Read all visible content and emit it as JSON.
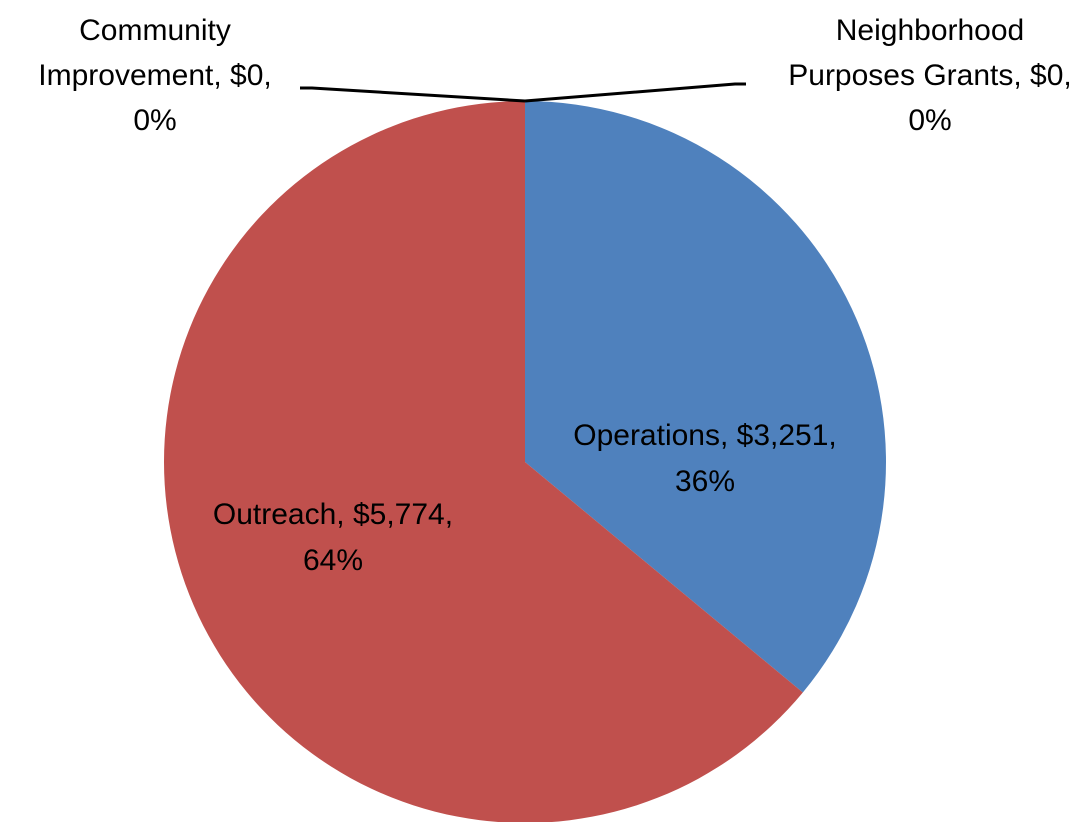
{
  "chart_data": {
    "type": "pie",
    "slices": [
      {
        "name": "Operations",
        "value": 3251,
        "value_label": "$3,251",
        "percent_label": "36%",
        "color": "#4F81BD"
      },
      {
        "name": "Neighborhood Purposes Grants",
        "value": 0,
        "value_label": "$0",
        "percent_label": "0%",
        "color": "#9BBB59"
      },
      {
        "name": "Community Improvement",
        "value": 0,
        "value_label": "$0",
        "percent_label": "0%",
        "color": "#8064A2"
      },
      {
        "name": "Outreach",
        "value": 5774,
        "value_label": "$5,774",
        "percent_label": "64%",
        "color": "#C0504D"
      }
    ],
    "data_labels": [
      {
        "lines": [
          "Operations, $3,251,",
          "36%"
        ]
      },
      {
        "lines": [
          "Neighborhood",
          "Purposes Grants, $0,",
          "0%"
        ]
      },
      {
        "lines": [
          "Community",
          "Improvement, $0,",
          "0%"
        ]
      },
      {
        "lines": [
          "Outreach, $5,774,",
          "64%"
        ]
      }
    ],
    "legend": "none"
  }
}
